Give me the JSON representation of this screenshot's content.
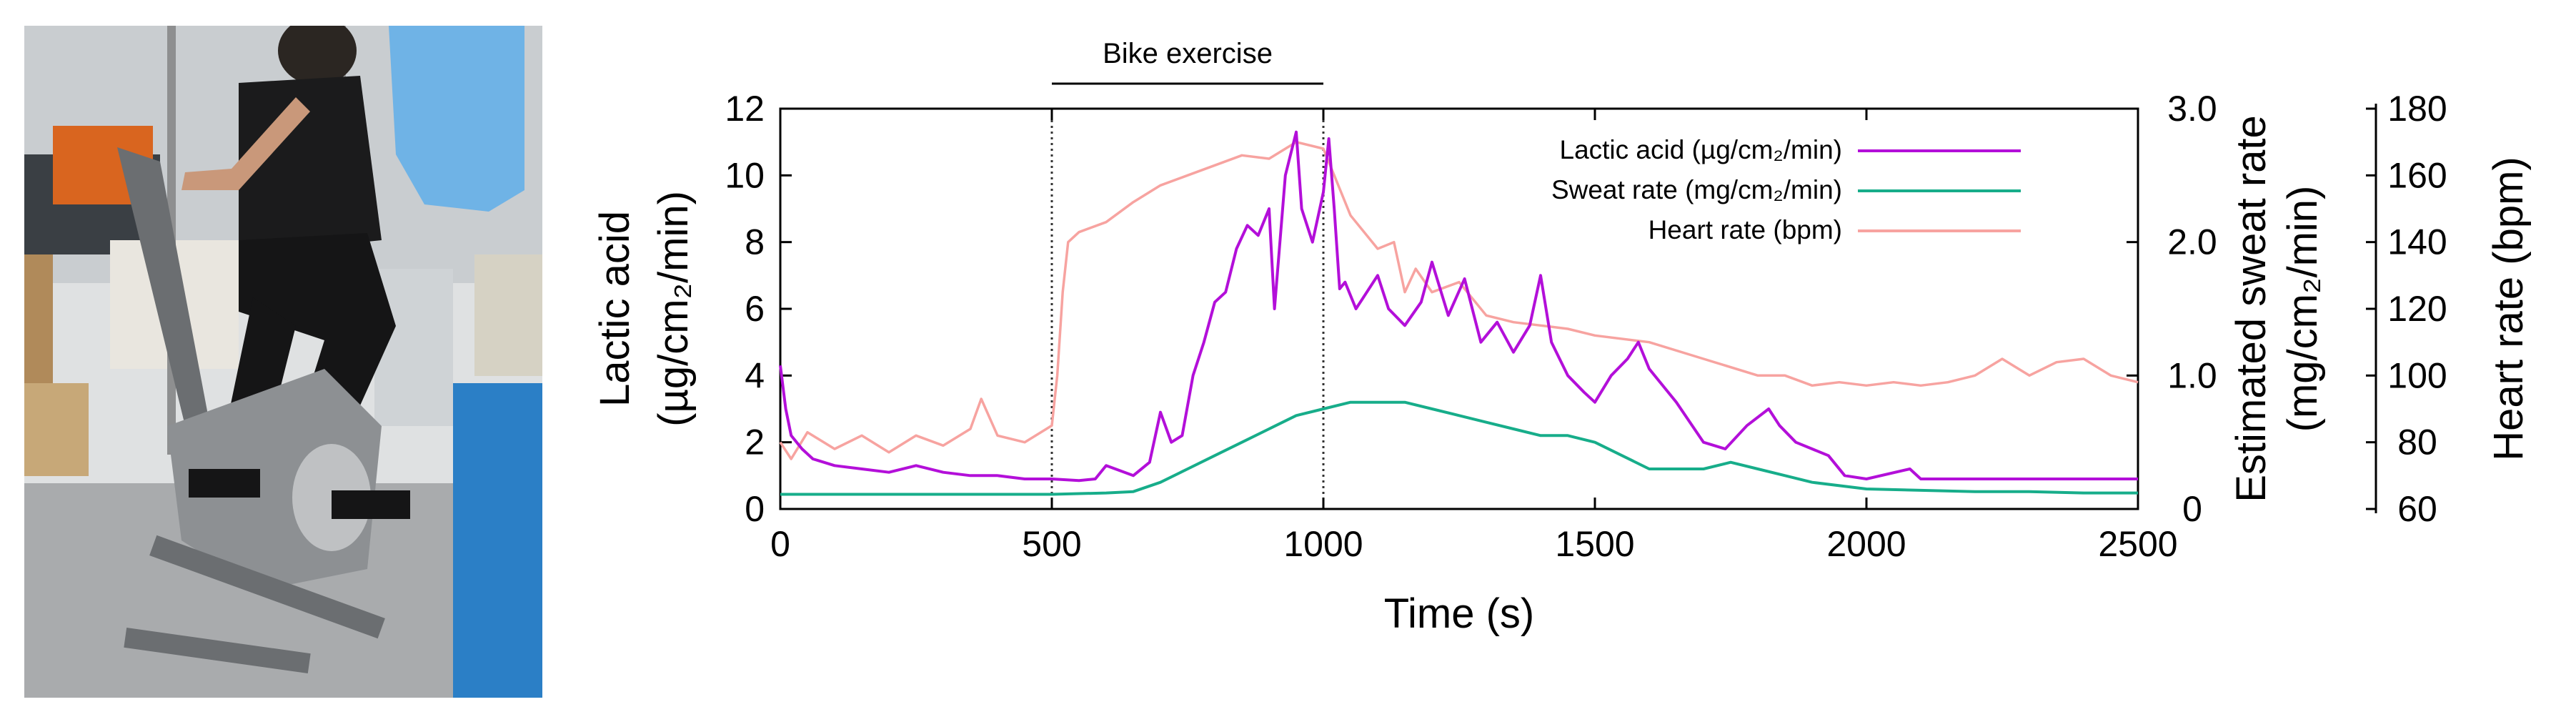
{
  "photo": {
    "description_icon": "exercise-bike-photo"
  },
  "chart_data": {
    "type": "line",
    "annotation": "Bike exercise",
    "exercise_window": [
      500,
      1000
    ],
    "xlabel": "Time (s)",
    "xlim": [
      0,
      2500
    ],
    "xticks": [
      0,
      500,
      1000,
      1500,
      2000,
      2500
    ],
    "ylabel_left_line1": "Lactic acid",
    "ylabel_left_line2": "(µg/cm₂/min)",
    "ylim_left": [
      0,
      12
    ],
    "yticks_left": [
      0,
      2,
      4,
      6,
      8,
      10,
      12
    ],
    "ylabel_right1_line1": "Estimated sweat rate",
    "ylabel_right1_line2": "(mg/cm₂/min)",
    "ylim_right1": [
      0,
      3.0
    ],
    "yticks_right1": [
      "0",
      "1.0",
      "2.0",
      "3.0"
    ],
    "yticks_right1_values": [
      0,
      1.0,
      2.0,
      3.0
    ],
    "ylabel_right2": "Heart rate (bpm)",
    "ylim_right2": [
      60,
      180
    ],
    "yticks_right2": [
      60,
      80,
      100,
      120,
      140,
      160,
      180
    ],
    "legend": [
      {
        "label": "Lactic acid (µg/cm₂/min)",
        "color": "#b30fd9"
      },
      {
        "label": "Sweat rate (mg/cm₂/min)",
        "color": "#17ad8a"
      },
      {
        "label": "Heart rate (bpm)",
        "color": "#f7a3a0"
      }
    ],
    "series": [
      {
        "name": "Lactic acid",
        "axis": "left",
        "color": "#b30fd9",
        "x": [
          0,
          10,
          20,
          40,
          60,
          100,
          150,
          200,
          250,
          300,
          350,
          400,
          450,
          500,
          550,
          580,
          600,
          650,
          680,
          700,
          720,
          740,
          760,
          780,
          800,
          820,
          840,
          860,
          880,
          900,
          910,
          930,
          950,
          960,
          980,
          1000,
          1010,
          1020,
          1030,
          1040,
          1060,
          1080,
          1100,
          1120,
          1150,
          1180,
          1200,
          1230,
          1260,
          1290,
          1320,
          1350,
          1380,
          1400,
          1420,
          1450,
          1480,
          1500,
          1530,
          1560,
          1580,
          1600,
          1650,
          1700,
          1740,
          1780,
          1820,
          1840,
          1870,
          1900,
          1930,
          1960,
          2000,
          2080,
          2100,
          2200,
          2300,
          2400,
          2500
        ],
        "values": [
          4.3,
          3.0,
          2.2,
          1.8,
          1.5,
          1.3,
          1.2,
          1.1,
          1.3,
          1.1,
          1.0,
          1.0,
          0.9,
          0.9,
          0.85,
          0.9,
          1.3,
          1.0,
          1.4,
          2.9,
          2.0,
          2.2,
          4.0,
          5.0,
          6.2,
          6.5,
          7.8,
          8.5,
          8.2,
          9.0,
          6.0,
          10.0,
          11.3,
          9.0,
          8.0,
          9.5,
          11.1,
          9.0,
          6.6,
          6.8,
          6.0,
          6.5,
          7.0,
          6.0,
          5.5,
          6.2,
          7.4,
          5.8,
          6.9,
          5.0,
          5.6,
          4.7,
          5.5,
          7.0,
          5.0,
          4.0,
          3.5,
          3.2,
          4.0,
          4.5,
          5.0,
          4.2,
          3.2,
          2.0,
          1.8,
          2.5,
          3.0,
          2.5,
          2.0,
          1.8,
          1.6,
          1.0,
          0.9,
          1.2,
          0.9,
          0.9,
          0.9,
          0.9,
          0.9
        ]
      },
      {
        "name": "Sweat rate",
        "axis": "right1",
        "color": "#17ad8a",
        "x": [
          0,
          100,
          200,
          300,
          400,
          500,
          600,
          650,
          700,
          750,
          800,
          850,
          900,
          950,
          1000,
          1050,
          1100,
          1150,
          1200,
          1250,
          1300,
          1350,
          1400,
          1450,
          1500,
          1550,
          1600,
          1650,
          1700,
          1750,
          1800,
          1850,
          1900,
          2000,
          2100,
          2200,
          2300,
          2400,
          2500
        ],
        "values": [
          0.11,
          0.11,
          0.11,
          0.11,
          0.11,
          0.11,
          0.12,
          0.13,
          0.2,
          0.3,
          0.4,
          0.5,
          0.6,
          0.7,
          0.75,
          0.8,
          0.8,
          0.8,
          0.75,
          0.7,
          0.65,
          0.6,
          0.55,
          0.55,
          0.5,
          0.4,
          0.3,
          0.3,
          0.3,
          0.35,
          0.3,
          0.25,
          0.2,
          0.15,
          0.14,
          0.13,
          0.13,
          0.12,
          0.12
        ]
      },
      {
        "name": "Heart rate",
        "axis": "right2",
        "color": "#f7a3a0",
        "x": [
          0,
          20,
          50,
          100,
          150,
          200,
          250,
          300,
          350,
          370,
          400,
          450,
          490,
          500,
          510,
          520,
          530,
          550,
          600,
          650,
          700,
          750,
          800,
          850,
          900,
          950,
          1000,
          1020,
          1050,
          1100,
          1130,
          1150,
          1170,
          1200,
          1250,
          1300,
          1350,
          1400,
          1450,
          1500,
          1600,
          1700,
          1800,
          1850,
          1900,
          1950,
          2000,
          2050,
          2100,
          2150,
          2200,
          2250,
          2300,
          2350,
          2400,
          2450,
          2500
        ],
        "values": [
          80,
          75,
          83,
          78,
          82,
          77,
          82,
          79,
          84,
          93,
          82,
          80,
          84,
          85,
          100,
          125,
          140,
          143,
          146,
          152,
          157,
          160,
          163,
          166,
          165,
          170,
          168,
          160,
          148,
          138,
          140,
          125,
          132,
          125,
          128,
          118,
          116,
          115,
          114,
          112,
          110,
          105,
          100,
          100,
          97,
          98,
          97,
          98,
          97,
          98,
          100,
          105,
          100,
          104,
          105,
          100,
          98
        ]
      }
    ]
  }
}
